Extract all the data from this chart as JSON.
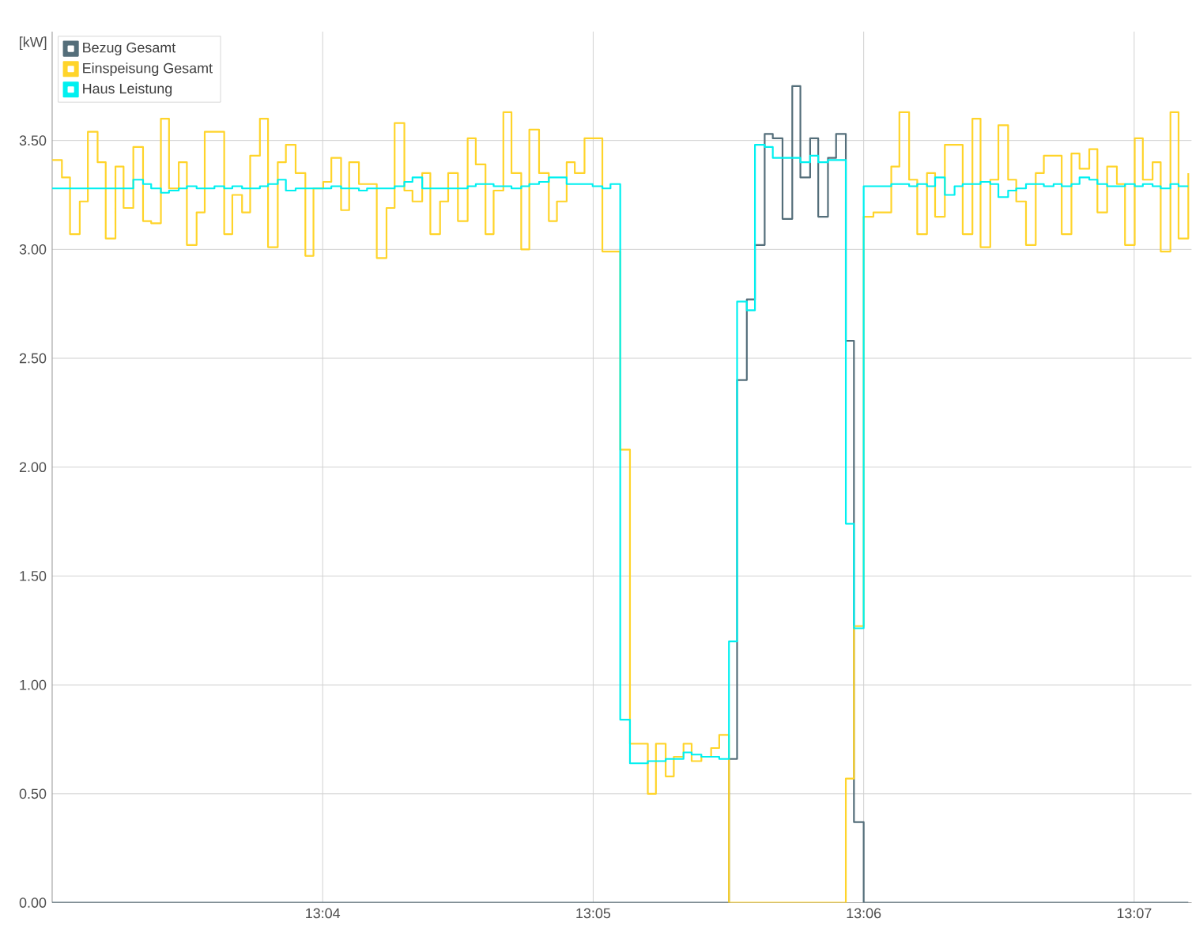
{
  "chart_data": {
    "type": "step",
    "ylabel": "[kW]",
    "legend": "top left",
    "grid": true,
    "xlim": [
      13.05,
      13.1202
    ],
    "ylim": [
      0,
      4.0
    ],
    "xticks": [
      {
        "value": 13.066667,
        "label": "13:04"
      },
      {
        "value": 13.083333,
        "label": "13:05"
      },
      {
        "value": 13.1,
        "label": "13:06"
      },
      {
        "value": 13.116667,
        "label": "13:07"
      }
    ],
    "yticks": [
      {
        "value": 0,
        "label": "0.00"
      },
      {
        "value": 0.5,
        "label": "0.50"
      },
      {
        "value": 1.0,
        "label": "1.00"
      },
      {
        "value": 1.5,
        "label": "1.50"
      },
      {
        "value": 2.0,
        "label": "2.00"
      },
      {
        "value": 2.5,
        "label": "2.50"
      },
      {
        "value": 3.0,
        "label": "3.00"
      },
      {
        "value": 3.5,
        "label": "3.50"
      }
    ],
    "x": [
      13.05,
      13.0506,
      13.0511,
      13.0517,
      13.0522,
      13.0528,
      13.0533,
      13.0539,
      13.0544,
      13.055,
      13.0556,
      13.0561,
      13.0567,
      13.0572,
      13.0578,
      13.0583,
      13.0589,
      13.0594,
      13.06,
      13.0606,
      13.0611,
      13.0617,
      13.0622,
      13.0628,
      13.0633,
      13.0639,
      13.0644,
      13.065,
      13.0656,
      13.0661,
      13.0667,
      13.0672,
      13.0678,
      13.0683,
      13.0689,
      13.0694,
      13.07,
      13.0706,
      13.0711,
      13.0717,
      13.0722,
      13.0728,
      13.0733,
      13.0739,
      13.0744,
      13.075,
      13.0756,
      13.0761,
      13.0767,
      13.0772,
      13.0778,
      13.0783,
      13.0789,
      13.0794,
      13.08,
      13.0806,
      13.0811,
      13.0817,
      13.0822,
      13.0828,
      13.0833,
      13.0839,
      13.0844,
      13.085,
      13.0856,
      13.0861,
      13.0867,
      13.0872,
      13.0878,
      13.0883,
      13.0889,
      13.0894,
      13.09,
      13.0906,
      13.0911,
      13.0917,
      13.0922,
      13.0928,
      13.0933,
      13.0939,
      13.0944,
      13.095,
      13.0956,
      13.0961,
      13.0967,
      13.0972,
      13.0978,
      13.0983,
      13.0989,
      13.0994,
      13.1,
      13.1006,
      13.1011,
      13.1017,
      13.1022,
      13.1028,
      13.1033,
      13.1039,
      13.1044,
      13.105,
      13.1056,
      13.1061,
      13.1067,
      13.1072,
      13.1078,
      13.1083,
      13.1089,
      13.1094,
      13.11,
      13.1106,
      13.1111,
      13.1117,
      13.1122,
      13.1128,
      13.1133,
      13.1139,
      13.1144,
      13.115,
      13.1156,
      13.1161,
      13.1167,
      13.1172,
      13.1178,
      13.1183,
      13.1189,
      13.1194,
      13.12
    ],
    "series": [
      {
        "name": "Bezug Gesamt",
        "color": "#546e7a",
        "values": [
          0,
          0,
          0,
          0,
          0,
          0,
          0,
          0,
          0,
          0,
          0,
          0,
          0,
          0,
          0,
          0,
          0,
          0,
          0,
          0,
          0,
          0,
          0,
          0,
          0,
          0,
          0,
          0,
          0,
          0,
          0,
          0,
          0,
          0,
          0,
          0,
          0,
          0,
          0,
          0,
          0,
          0,
          0,
          0,
          0,
          0,
          0,
          0,
          0,
          0,
          0,
          0,
          0,
          0,
          0,
          0,
          0,
          0,
          0,
          0,
          0,
          0,
          0,
          0,
          0,
          0,
          0,
          0,
          0,
          0,
          0,
          0,
          0,
          0,
          0,
          0.66,
          2.4,
          2.77,
          3.02,
          3.53,
          3.51,
          3.14,
          3.75,
          3.33,
          3.51,
          3.15,
          3.42,
          3.53,
          2.58,
          0.37,
          0,
          0,
          0,
          0,
          0,
          0,
          0,
          0,
          0,
          0,
          0,
          0,
          0,
          0,
          0,
          0,
          0,
          0,
          0,
          0,
          0,
          0,
          0,
          0,
          0,
          0,
          0,
          0,
          0,
          0,
          0,
          0,
          0,
          0,
          0,
          0,
          0
        ]
      },
      {
        "name": "Einspeisung Gesamt",
        "color": "#ffd42a",
        "values": [
          3.41,
          3.33,
          3.07,
          3.22,
          3.54,
          3.4,
          3.05,
          3.38,
          3.19,
          3.47,
          3.13,
          3.12,
          3.6,
          3.28,
          3.4,
          3.02,
          3.17,
          3.54,
          3.54,
          3.07,
          3.25,
          3.17,
          3.43,
          3.6,
          3.01,
          3.4,
          3.48,
          3.35,
          2.97,
          3.28,
          3.31,
          3.42,
          3.18,
          3.4,
          3.3,
          3.3,
          2.96,
          3.19,
          3.58,
          3.27,
          3.22,
          3.35,
          3.07,
          3.22,
          3.35,
          3.13,
          3.51,
          3.39,
          3.07,
          3.27,
          3.63,
          3.35,
          3.0,
          3.55,
          3.35,
          3.13,
          3.22,
          3.4,
          3.35,
          3.51,
          3.51,
          2.99,
          2.99,
          2.08,
          0.73,
          0.73,
          0.5,
          0.73,
          0.58,
          0.67,
          0.73,
          0.65,
          0.67,
          0.71,
          0.77,
          0,
          0,
          0,
          0,
          0,
          0,
          0,
          0,
          0,
          0,
          0,
          0,
          0,
          0.57,
          1.27,
          3.15,
          3.17,
          3.17,
          3.38,
          3.63,
          3.32,
          3.07,
          3.35,
          3.15,
          3.48,
          3.48,
          3.07,
          3.6,
          3.01,
          3.32,
          3.57,
          3.32,
          3.22,
          3.02,
          3.35,
          3.43,
          3.43,
          3.07,
          3.44,
          3.37,
          3.46,
          3.17,
          3.38,
          3.3,
          3.02,
          3.51,
          3.32,
          3.4,
          2.99,
          3.63,
          3.05,
          3.35
        ]
      },
      {
        "name": "Haus Leistung",
        "color": "#00f0f0",
        "values": [
          3.28,
          3.28,
          3.28,
          3.28,
          3.28,
          3.28,
          3.28,
          3.28,
          3.28,
          3.32,
          3.3,
          3.28,
          3.26,
          3.27,
          3.28,
          3.29,
          3.28,
          3.28,
          3.29,
          3.28,
          3.29,
          3.28,
          3.28,
          3.29,
          3.3,
          3.32,
          3.27,
          3.28,
          3.28,
          3.28,
          3.28,
          3.29,
          3.28,
          3.28,
          3.27,
          3.28,
          3.28,
          3.28,
          3.29,
          3.31,
          3.33,
          3.28,
          3.28,
          3.28,
          3.28,
          3.28,
          3.29,
          3.3,
          3.3,
          3.29,
          3.29,
          3.28,
          3.29,
          3.3,
          3.31,
          3.33,
          3.33,
          3.3,
          3.3,
          3.3,
          3.29,
          3.28,
          3.3,
          0.84,
          0.64,
          0.64,
          0.65,
          0.65,
          0.66,
          0.66,
          0.69,
          0.68,
          0.67,
          0.67,
          0.66,
          1.2,
          2.76,
          2.72,
          3.48,
          3.47,
          3.42,
          3.42,
          3.42,
          3.4,
          3.43,
          3.4,
          3.41,
          3.41,
          1.74,
          1.26,
          3.29,
          3.29,
          3.29,
          3.3,
          3.3,
          3.29,
          3.3,
          3.29,
          3.33,
          3.25,
          3.29,
          3.3,
          3.3,
          3.31,
          3.3,
          3.24,
          3.27,
          3.28,
          3.3,
          3.3,
          3.29,
          3.3,
          3.29,
          3.3,
          3.33,
          3.32,
          3.3,
          3.29,
          3.29,
          3.3,
          3.29,
          3.3,
          3.29,
          3.28,
          3.3,
          3.29,
          3.29
        ]
      }
    ]
  }
}
